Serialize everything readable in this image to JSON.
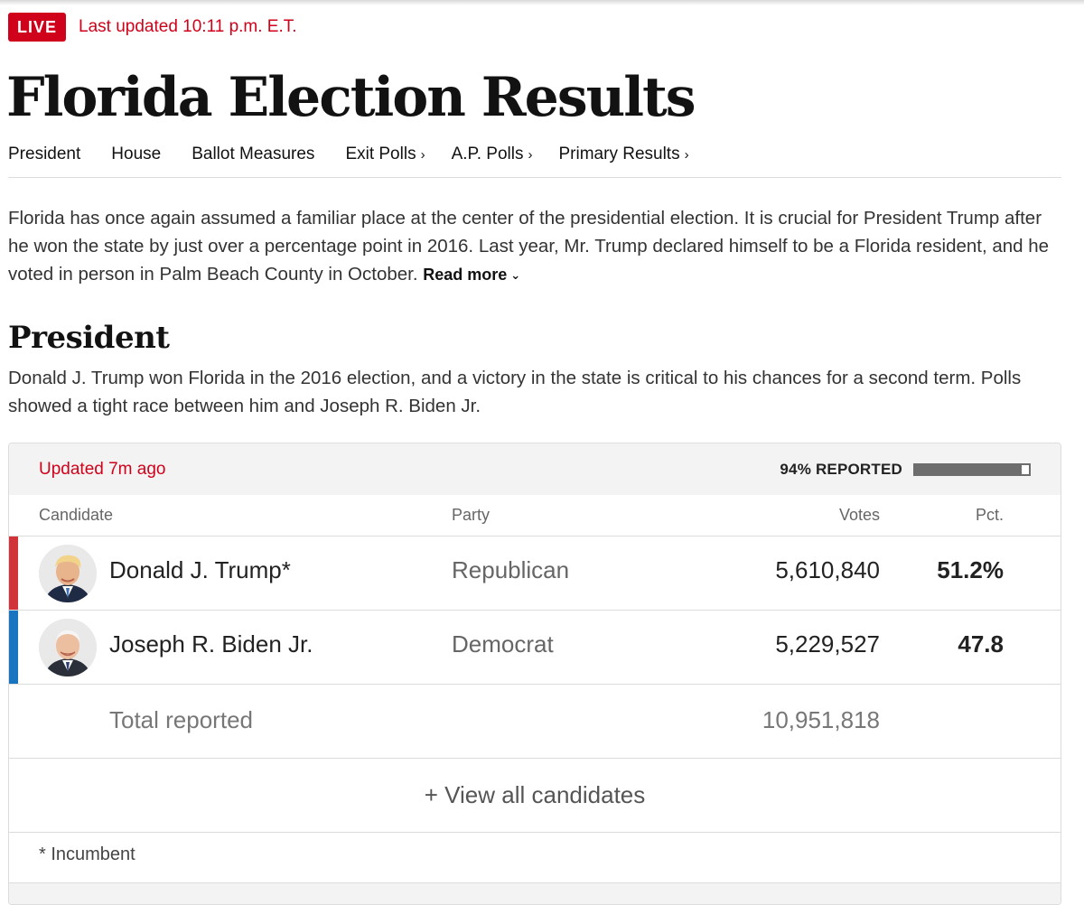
{
  "live": {
    "badge": "LIVE",
    "updated": "Last updated 10:11 p.m. E.T."
  },
  "title": "Florida Election Results",
  "nav": [
    {
      "label": "President",
      "chevron": ""
    },
    {
      "label": "House",
      "chevron": ""
    },
    {
      "label": "Ballot Measures",
      "chevron": ""
    },
    {
      "label": "Exit Polls",
      "chevron": "›"
    },
    {
      "label": "A.P. Polls",
      "chevron": "›"
    },
    {
      "label": "Primary Results",
      "chevron": "›"
    }
  ],
  "intro": {
    "text": "Florida has once again assumed a familiar place at the center of the presidential election. It is crucial for President Trump after he won the state by just over a percentage point in 2016. Last year, Mr. Trump declared himself to be a Florida resident, and he voted in person in Palm Beach County in October.",
    "read_more": "Read more"
  },
  "section": {
    "title": "President",
    "description": "Donald J. Trump won Florida in the 2016 election, and a victory in the state is critical to his chances for a second term. Polls showed a tight race between him and Joseph R. Biden Jr."
  },
  "results": {
    "updated": "Updated 7m ago",
    "reporting_label": "94% REPORTED",
    "reporting_fraction": 0.94,
    "columns": {
      "candidate": "Candidate",
      "party": "Party",
      "votes": "Votes",
      "pct": "Pct."
    },
    "candidates": [
      {
        "name": "Donald J. Trump*",
        "party": "Republican",
        "votes": "5,610,840",
        "pct": "51.2%",
        "color": "#d0343a"
      },
      {
        "name": "Joseph R. Biden Jr.",
        "party": "Democrat",
        "votes": "5,229,527",
        "pct": "47.8",
        "color": "#1a75c1"
      }
    ],
    "total_label": "Total reported",
    "total_votes": "10,951,818",
    "view_all": "+ View all candidates",
    "footnote": "* Incumbent"
  },
  "colors": {
    "accent_red": "#d0021b",
    "republican": "#d0343a",
    "democrat": "#1a75c1"
  }
}
